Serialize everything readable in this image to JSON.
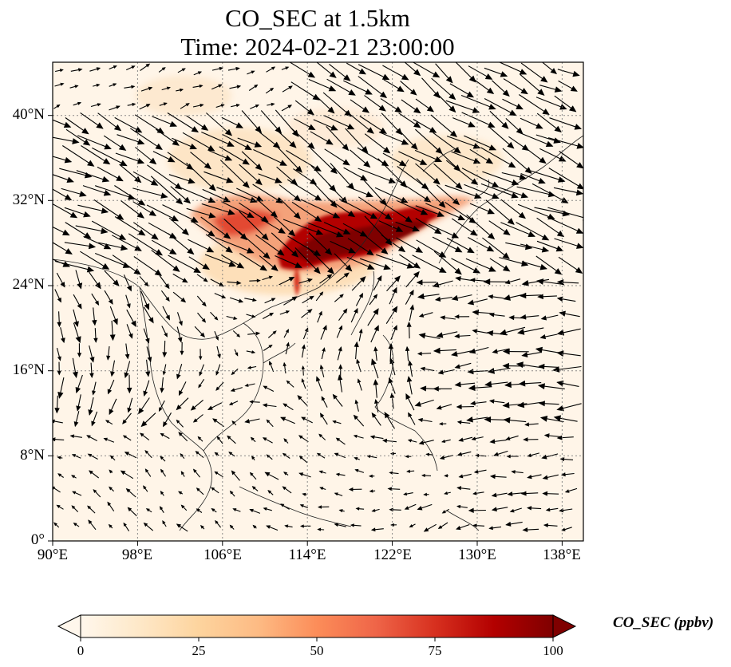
{
  "title": {
    "line1": "CO_SEC at 1.5km",
    "line2": "Time: 2024-02-21 23:00:00"
  },
  "map": {
    "variable": "CO_SEC",
    "level": "1.5km",
    "lon_range": [
      90,
      140
    ],
    "lat_range": [
      0,
      45
    ],
    "gridlines": "dotted",
    "overlay": "wind vectors (quiver)",
    "lat_ticks": [
      "0°",
      "8°N",
      "16°N",
      "24°N",
      "32°N",
      "40°N"
    ],
    "lon_ticks": [
      "90°E",
      "98°E",
      "106°E",
      "114°E",
      "122°E",
      "130°E",
      "138°E"
    ],
    "plume_color_high": "#7f0000",
    "plume_color_mid": "#d7301f",
    "background_color": "#fff7ec"
  },
  "colorbar": {
    "label": "CO_SEC (ppbv)",
    "ticks": [
      "0",
      "25",
      "50",
      "75",
      "100"
    ],
    "range": [
      0,
      100
    ],
    "colormap": "OrRd",
    "colors": [
      "#fff7ec",
      "#fee8c8",
      "#fdd49e",
      "#fdbb84",
      "#fc8d59",
      "#ef6548",
      "#d7301f",
      "#b30000",
      "#7f0000"
    ],
    "extend": "both"
  }
}
